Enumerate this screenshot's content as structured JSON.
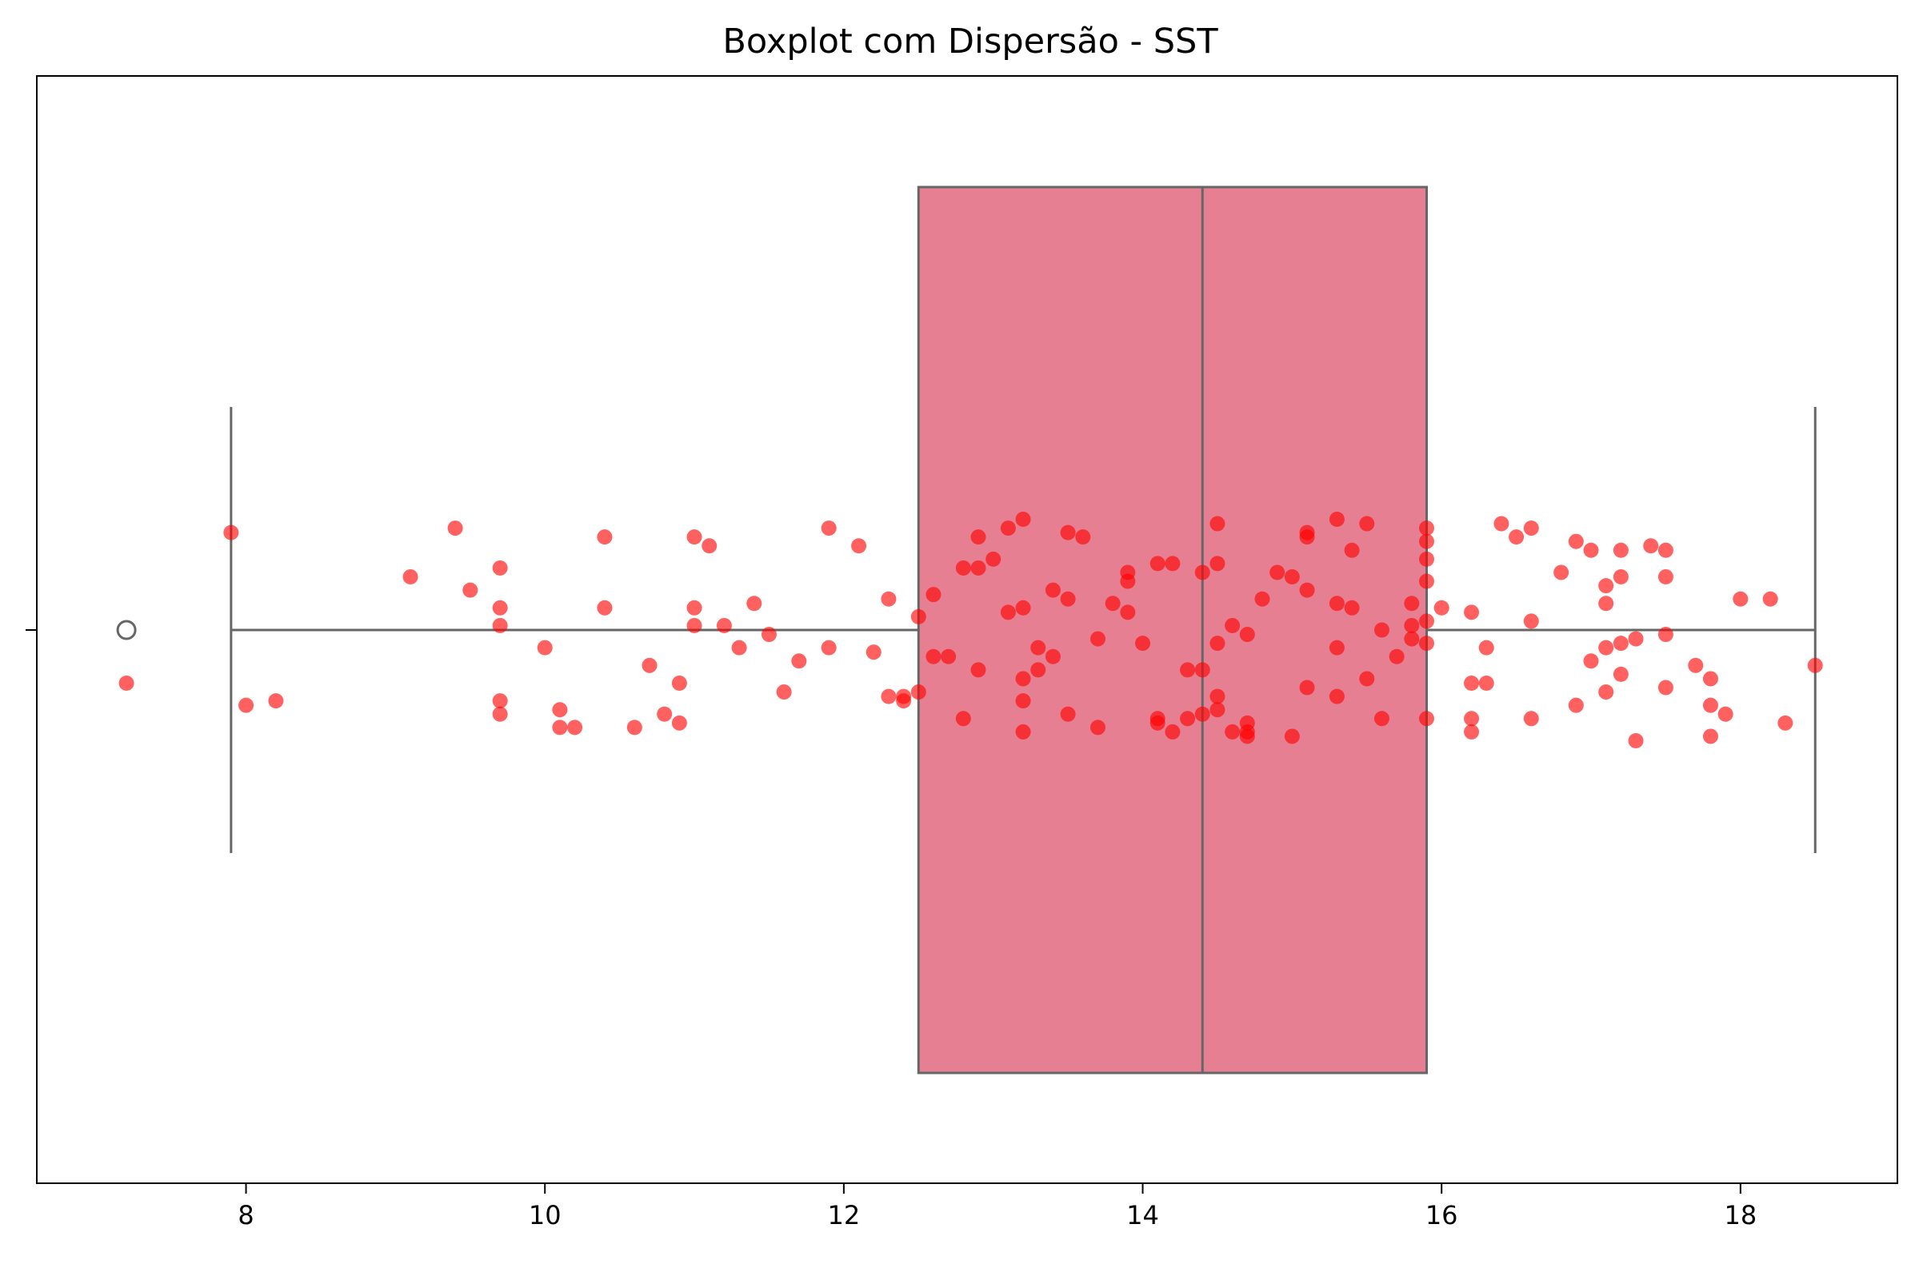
{
  "chart_data": {
    "type": "boxplot",
    "title": "Boxplot com Dispersão - SST",
    "xlabel": "",
    "ylabel": "",
    "xlim": [
      6.6,
      19.05
    ],
    "xticks": [
      8,
      10,
      12,
      14,
      16,
      18
    ],
    "xtick_labels": [
      "8",
      "10",
      "12",
      "14",
      "16",
      "18"
    ],
    "grid": false,
    "legend": "none",
    "box": {
      "q1": 12.5,
      "median": 14.4,
      "q3": 15.9,
      "whisker_low": 7.9,
      "whisker_high": 18.5,
      "outliers": [
        7.2
      ],
      "fill_color": "#e67f91",
      "line_color": "#666666"
    },
    "points_color": "#ff0000",
    "points": [
      {
        "x": 7.2,
        "y": -0.12
      },
      {
        "x": 7.9,
        "y": 0.22
      },
      {
        "x": 8.0,
        "y": -0.17
      },
      {
        "x": 8.2,
        "y": -0.16
      },
      {
        "x": 9.1,
        "y": 0.12
      },
      {
        "x": 9.4,
        "y": 0.23
      },
      {
        "x": 9.5,
        "y": 0.09
      },
      {
        "x": 9.7,
        "y": 0.14
      },
      {
        "x": 9.7,
        "y": 0.05
      },
      {
        "x": 9.7,
        "y": 0.01
      },
      {
        "x": 9.7,
        "y": -0.16
      },
      {
        "x": 9.7,
        "y": -0.19
      },
      {
        "x": 10.0,
        "y": -0.04
      },
      {
        "x": 10.1,
        "y": -0.18
      },
      {
        "x": 10.1,
        "y": -0.22
      },
      {
        "x": 10.2,
        "y": -0.22
      },
      {
        "x": 10.4,
        "y": 0.21
      },
      {
        "x": 10.4,
        "y": 0.05
      },
      {
        "x": 10.6,
        "y": -0.22
      },
      {
        "x": 10.7,
        "y": -0.08
      },
      {
        "x": 10.8,
        "y": -0.19
      },
      {
        "x": 10.9,
        "y": -0.12
      },
      {
        "x": 10.9,
        "y": -0.21
      },
      {
        "x": 11.0,
        "y": 0.21
      },
      {
        "x": 11.0,
        "y": 0.05
      },
      {
        "x": 11.0,
        "y": 0.01
      },
      {
        "x": 11.1,
        "y": 0.19
      },
      {
        "x": 11.2,
        "y": 0.01
      },
      {
        "x": 11.3,
        "y": -0.04
      },
      {
        "x": 11.4,
        "y": 0.06
      },
      {
        "x": 11.5,
        "y": -0.01
      },
      {
        "x": 11.6,
        "y": -0.14
      },
      {
        "x": 11.7,
        "y": -0.07
      },
      {
        "x": 11.9,
        "y": 0.23
      },
      {
        "x": 11.9,
        "y": -0.04
      },
      {
        "x": 12.1,
        "y": 0.19
      },
      {
        "x": 12.2,
        "y": -0.05
      },
      {
        "x": 12.3,
        "y": 0.07
      },
      {
        "x": 12.3,
        "y": -0.15
      },
      {
        "x": 12.4,
        "y": -0.15
      },
      {
        "x": 12.4,
        "y": -0.16
      },
      {
        "x": 12.5,
        "y": 0.03
      },
      {
        "x": 12.5,
        "y": -0.14
      },
      {
        "x": 12.6,
        "y": 0.08
      },
      {
        "x": 12.6,
        "y": -0.06
      },
      {
        "x": 12.7,
        "y": -0.06
      },
      {
        "x": 12.8,
        "y": 0.14
      },
      {
        "x": 12.8,
        "y": -0.2
      },
      {
        "x": 12.9,
        "y": 0.21
      },
      {
        "x": 12.9,
        "y": 0.14
      },
      {
        "x": 12.9,
        "y": -0.09
      },
      {
        "x": 13.0,
        "y": 0.16
      },
      {
        "x": 13.1,
        "y": 0.23
      },
      {
        "x": 13.1,
        "y": 0.04
      },
      {
        "x": 13.2,
        "y": 0.25
      },
      {
        "x": 13.2,
        "y": 0.05
      },
      {
        "x": 13.2,
        "y": -0.11
      },
      {
        "x": 13.2,
        "y": -0.16
      },
      {
        "x": 13.2,
        "y": -0.23
      },
      {
        "x": 13.3,
        "y": -0.04
      },
      {
        "x": 13.3,
        "y": -0.09
      },
      {
        "x": 13.4,
        "y": 0.09
      },
      {
        "x": 13.4,
        "y": -0.06
      },
      {
        "x": 13.5,
        "y": 0.22
      },
      {
        "x": 13.5,
        "y": 0.07
      },
      {
        "x": 13.5,
        "y": -0.19
      },
      {
        "x": 13.6,
        "y": 0.21
      },
      {
        "x": 13.7,
        "y": -0.02
      },
      {
        "x": 13.7,
        "y": -0.22
      },
      {
        "x": 13.8,
        "y": 0.06
      },
      {
        "x": 13.9,
        "y": 0.13
      },
      {
        "x": 13.9,
        "y": 0.11
      },
      {
        "x": 13.9,
        "y": 0.04
      },
      {
        "x": 14.0,
        "y": -0.03
      },
      {
        "x": 14.1,
        "y": 0.15
      },
      {
        "x": 14.1,
        "y": -0.2
      },
      {
        "x": 14.1,
        "y": -0.21
      },
      {
        "x": 14.2,
        "y": 0.15
      },
      {
        "x": 14.2,
        "y": -0.23
      },
      {
        "x": 14.3,
        "y": -0.09
      },
      {
        "x": 14.3,
        "y": -0.2
      },
      {
        "x": 14.4,
        "y": 0.13
      },
      {
        "x": 14.4,
        "y": -0.09
      },
      {
        "x": 14.4,
        "y": -0.19
      },
      {
        "x": 14.5,
        "y": 0.24
      },
      {
        "x": 14.5,
        "y": 0.15
      },
      {
        "x": 14.5,
        "y": -0.03
      },
      {
        "x": 14.5,
        "y": -0.15
      },
      {
        "x": 14.5,
        "y": -0.18
      },
      {
        "x": 14.6,
        "y": 0.01
      },
      {
        "x": 14.6,
        "y": -0.23
      },
      {
        "x": 14.7,
        "y": -0.01
      },
      {
        "x": 14.7,
        "y": -0.21
      },
      {
        "x": 14.7,
        "y": -0.23
      },
      {
        "x": 14.7,
        "y": -0.24
      },
      {
        "x": 14.8,
        "y": 0.07
      },
      {
        "x": 14.9,
        "y": 0.13
      },
      {
        "x": 15.0,
        "y": 0.12
      },
      {
        "x": 15.0,
        "y": -0.24
      },
      {
        "x": 15.1,
        "y": 0.22
      },
      {
        "x": 15.1,
        "y": 0.21
      },
      {
        "x": 15.1,
        "y": 0.09
      },
      {
        "x": 15.1,
        "y": -0.13
      },
      {
        "x": 15.3,
        "y": 0.25
      },
      {
        "x": 15.3,
        "y": 0.06
      },
      {
        "x": 15.3,
        "y": -0.04
      },
      {
        "x": 15.3,
        "y": -0.15
      },
      {
        "x": 15.4,
        "y": 0.18
      },
      {
        "x": 15.4,
        "y": 0.05
      },
      {
        "x": 15.5,
        "y": 0.24
      },
      {
        "x": 15.5,
        "y": -0.11
      },
      {
        "x": 15.6,
        "y": 0.0
      },
      {
        "x": 15.6,
        "y": -0.2
      },
      {
        "x": 15.7,
        "y": -0.06
      },
      {
        "x": 15.8,
        "y": 0.06
      },
      {
        "x": 15.8,
        "y": 0.01
      },
      {
        "x": 15.8,
        "y": -0.02
      },
      {
        "x": 15.9,
        "y": 0.23
      },
      {
        "x": 15.9,
        "y": 0.2
      },
      {
        "x": 15.9,
        "y": 0.16
      },
      {
        "x": 15.9,
        "y": 0.11
      },
      {
        "x": 15.9,
        "y": 0.02
      },
      {
        "x": 15.9,
        "y": -0.03
      },
      {
        "x": 15.9,
        "y": -0.2
      },
      {
        "x": 16.0,
        "y": 0.05
      },
      {
        "x": 16.2,
        "y": 0.04
      },
      {
        "x": 16.2,
        "y": -0.12
      },
      {
        "x": 16.2,
        "y": -0.2
      },
      {
        "x": 16.2,
        "y": -0.23
      },
      {
        "x": 16.3,
        "y": -0.04
      },
      {
        "x": 16.3,
        "y": -0.12
      },
      {
        "x": 16.4,
        "y": 0.24
      },
      {
        "x": 16.5,
        "y": 0.21
      },
      {
        "x": 16.6,
        "y": 0.23
      },
      {
        "x": 16.6,
        "y": 0.02
      },
      {
        "x": 16.6,
        "y": -0.2
      },
      {
        "x": 16.8,
        "y": 0.13
      },
      {
        "x": 16.9,
        "y": 0.2
      },
      {
        "x": 16.9,
        "y": -0.17
      },
      {
        "x": 17.0,
        "y": 0.18
      },
      {
        "x": 17.0,
        "y": -0.07
      },
      {
        "x": 17.1,
        "y": 0.1
      },
      {
        "x": 17.1,
        "y": 0.06
      },
      {
        "x": 17.1,
        "y": -0.04
      },
      {
        "x": 17.1,
        "y": -0.14
      },
      {
        "x": 17.2,
        "y": 0.18
      },
      {
        "x": 17.2,
        "y": 0.12
      },
      {
        "x": 17.2,
        "y": -0.03
      },
      {
        "x": 17.2,
        "y": -0.1
      },
      {
        "x": 17.3,
        "y": -0.02
      },
      {
        "x": 17.3,
        "y": -0.25
      },
      {
        "x": 17.4,
        "y": 0.19
      },
      {
        "x": 17.5,
        "y": 0.18
      },
      {
        "x": 17.5,
        "y": 0.12
      },
      {
        "x": 17.5,
        "y": -0.01
      },
      {
        "x": 17.5,
        "y": -0.13
      },
      {
        "x": 17.7,
        "y": -0.08
      },
      {
        "x": 17.8,
        "y": -0.11
      },
      {
        "x": 17.8,
        "y": -0.17
      },
      {
        "x": 17.8,
        "y": -0.24
      },
      {
        "x": 17.9,
        "y": -0.19
      },
      {
        "x": 18.0,
        "y": 0.07
      },
      {
        "x": 18.2,
        "y": 0.07
      },
      {
        "x": 18.3,
        "y": -0.21
      },
      {
        "x": 18.5,
        "y": -0.08
      }
    ]
  }
}
